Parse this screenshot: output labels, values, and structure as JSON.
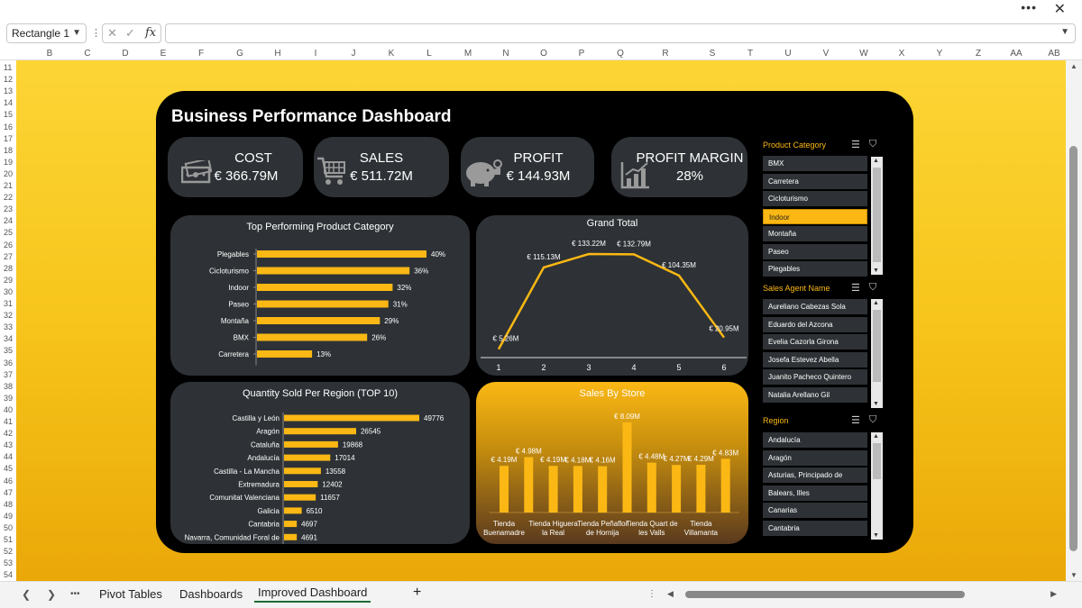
{
  "window": {
    "more_icon": "more-dots-icon",
    "close_icon": "close-icon"
  },
  "formula_bar": {
    "name_box": "Rectangle 1",
    "fx": "fx",
    "formula": ""
  },
  "columns": [
    "B",
    "C",
    "D",
    "E",
    "F",
    "G",
    "H",
    "I",
    "J",
    "K",
    "L",
    "M",
    "N",
    "O",
    "P",
    "Q",
    "R",
    "S",
    "T",
    "U",
    "V",
    "W",
    "X",
    "Y",
    "Z",
    "AA",
    "AB"
  ],
  "rows": [
    "11",
    "12",
    "13",
    "14",
    "15",
    "16",
    "17",
    "18",
    "19",
    "20",
    "21",
    "22",
    "23",
    "24",
    "25",
    "26",
    "27",
    "28",
    "29",
    "30",
    "31",
    "32",
    "33",
    "34",
    "35",
    "36",
    "37",
    "38",
    "39",
    "40",
    "41",
    "42",
    "43",
    "44",
    "45",
    "46",
    "47",
    "48",
    "49",
    "50",
    "51",
    "52",
    "53",
    "54"
  ],
  "tabs": {
    "pivot": "Pivot Tables",
    "dashboards": "Dashboards",
    "improved": "Improved Dashboard",
    "add": "+",
    "more": "•••"
  },
  "dashboard": {
    "title": "Business Performance Dashboard",
    "kpis": {
      "cost": {
        "label": "COST",
        "value": "€ 366.79M"
      },
      "sales": {
        "label": "SALES",
        "value": "€ 511.72M"
      },
      "profit": {
        "label": "PROFIT",
        "value": "€ 144.93M"
      },
      "margin": {
        "label": "PROFIT MARGIN",
        "value": "28%"
      }
    }
  },
  "colors": {
    "accent": "#fbb814",
    "panel": "#2e3236",
    "bg": "#000000"
  },
  "chart_data": [
    {
      "type": "bar",
      "orientation": "horizontal",
      "title": "Top Performing Product Category",
      "categories": [
        "Plegables",
        "Cicloturismo",
        "Indoor",
        "Paseo",
        "Montaña",
        "BMX",
        "Carretera"
      ],
      "values": [
        40,
        36,
        32,
        31,
        29,
        26,
        13
      ],
      "labels": [
        "40%",
        "36%",
        "32%",
        "31%",
        "29%",
        "26%",
        "13%"
      ],
      "xlim": [
        0,
        40
      ]
    },
    {
      "type": "line",
      "title": "Grand Total",
      "x": [
        "1",
        "2",
        "3",
        "4",
        "5",
        "6"
      ],
      "values": [
        5.26,
        115.13,
        133.22,
        132.79,
        104.35,
        20.95
      ],
      "labels": [
        "€ 5.26M",
        "€ 115.13M",
        "€ 133.22M",
        "€ 132.79M",
        "€ 104.35M",
        "€ 20.95M"
      ],
      "ylim": [
        0,
        133.22
      ]
    },
    {
      "type": "bar",
      "orientation": "horizontal",
      "title": "Quantity Sold  Per  Region (TOP 10)",
      "categories": [
        "Castilla y León",
        "Aragón",
        "Cataluña",
        "Andalucía",
        "Castilla - La Mancha",
        "Extremadura",
        "Comunitat Valenciana",
        "Galicia",
        "Cantabria",
        "Navarra, Comunidad Foral de"
      ],
      "values": [
        49776,
        26545,
        19868,
        17014,
        13558,
        12402,
        11657,
        6510,
        4697,
        4691
      ],
      "xlim": [
        0,
        49776
      ]
    },
    {
      "type": "bar",
      "title": "Sales By Store",
      "categories": [
        "Tienda Buenamadre",
        "",
        "Tienda Higuera la Real",
        "",
        "Tienda Peñaflor de Hornija",
        "",
        "Tienda Quart de les Valls",
        "",
        "Tienda Villamanta",
        ""
      ],
      "tick_labels": [
        [
          "Tienda",
          "Buenamadre"
        ],
        [
          "Tienda Higuera",
          "la Real"
        ],
        [
          "Tienda Peñaflor",
          "de Hornija"
        ],
        [
          "Tienda Quart de",
          "les Valls"
        ],
        [
          "Tienda",
          "Villamanta"
        ]
      ],
      "values": [
        4.19,
        4.98,
        4.19,
        4.18,
        4.16,
        8.09,
        4.48,
        4.27,
        4.29,
        4.83
      ],
      "labels": [
        "€ 4.19M",
        "€ 4.98M",
        "€ 4.19M",
        "€ 4.18M",
        "€ 4.16M",
        "€ 8.09M",
        "€ 4.48M",
        "€ 4.27M",
        "€ 4.29M",
        "€ 4.83M"
      ],
      "ylim": [
        0,
        8.09
      ]
    }
  ],
  "slicers": {
    "category": {
      "title": "Product Category",
      "items": [
        "BMX",
        "Carretera",
        "Cicloturismo",
        "Indoor",
        "Montaña",
        "Paseo",
        "Plegables"
      ],
      "selected": "Indoor"
    },
    "agent": {
      "title": "Sales Agent Name",
      "items": [
        "Aureliano Cabezas Sola",
        "Eduardo del Azcona",
        "Evelia Cazorla Girona",
        "Josefa Estevez Abella",
        "Juanito Pacheco Quintero",
        "Natalia Arellano Gil"
      ]
    },
    "region": {
      "title": "Region",
      "items": [
        "Andalucía",
        "Aragón",
        "Asturias, Principado de",
        "Balears, Illes",
        "Canarias",
        "Cantabria"
      ]
    }
  }
}
